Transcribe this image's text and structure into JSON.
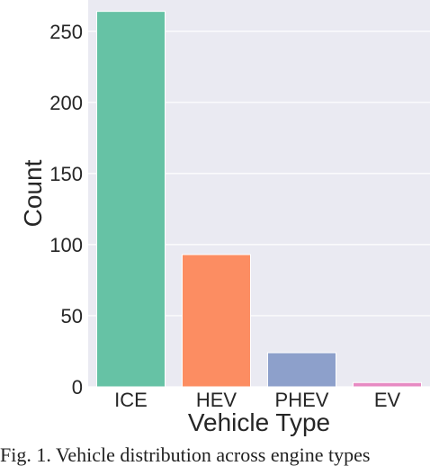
{
  "chart_data": {
    "type": "bar",
    "categories": [
      "ICE",
      "HEV",
      "PHEV",
      "EV"
    ],
    "values": [
      264,
      93,
      24,
      3
    ],
    "colors": [
      "#66c2a5",
      "#fc8d62",
      "#8da0cb",
      "#e78ac3"
    ],
    "xlabel": "Vehicle Type",
    "ylabel": "Count",
    "ylim": [
      0,
      272
    ],
    "yticks": [
      0,
      50,
      100,
      150,
      200,
      250
    ],
    "grid": true,
    "background": "#eaeaf2"
  },
  "caption": "Fig. 1. Vehicle distribution across engine types"
}
